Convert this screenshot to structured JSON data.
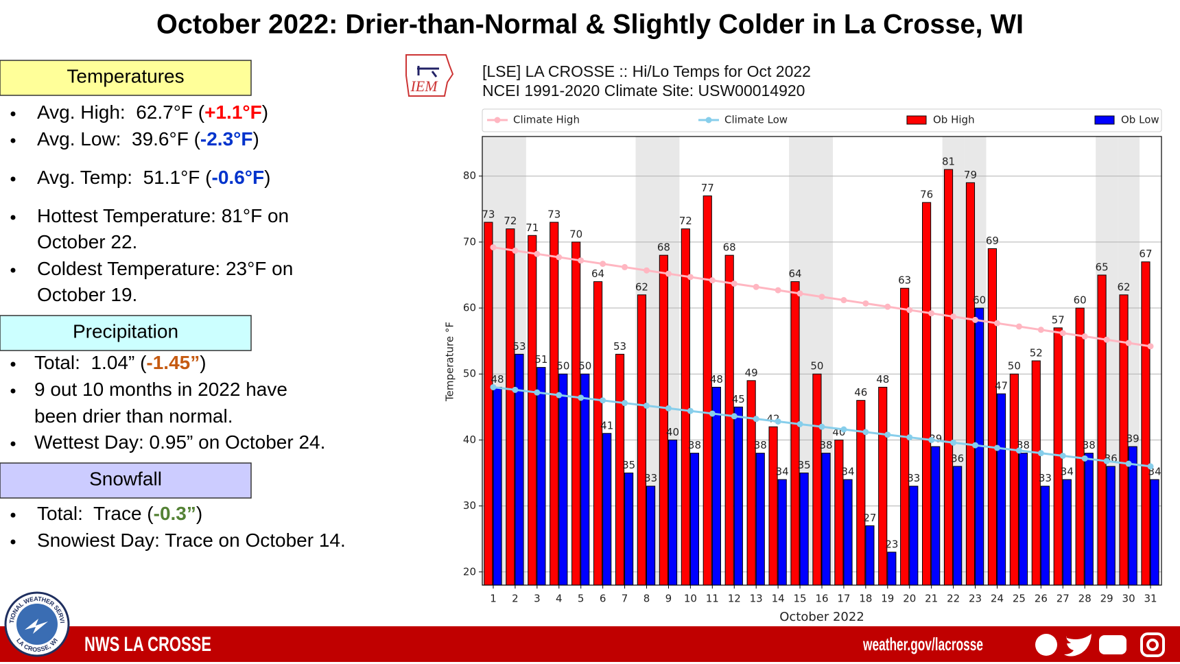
{
  "title": "October 2022: Drier-than-Normal & Slightly Colder in La Crosse, WI",
  "sections": [
    {
      "heading": "Temperatures",
      "color": "#ffff99",
      "items": [
        {
          "lines": [
            [
              {
                "text": "Avg. High:  62.7°F ("
              },
              {
                "text": "+1.1°F",
                "color": "#ff0000"
              },
              {
                "text": ")"
              }
            ]
          ]
        },
        {
          "lines": [
            [
              {
                "text": "Avg. Low:  39.6°F ("
              },
              {
                "text": "-2.3°F",
                "color": "#0033cc"
              },
              {
                "text": ")"
              }
            ]
          ]
        },
        {
          "lines": [
            [
              {
                "text": "Avg. Temp:  51.1°F ("
              },
              {
                "text": "-0.6°F",
                "color": "#0033cc"
              },
              {
                "text": ")"
              }
            ]
          ]
        },
        {
          "lines": [
            [
              {
                "text": "Hottest Temperature: 81°F on"
              }
            ],
            [
              {
                "text": "October 22."
              }
            ]
          ]
        },
        {
          "lines": [
            [
              {
                "text": "Coldest Temperature: 23°F on"
              }
            ],
            [
              {
                "text": "October 19."
              }
            ]
          ]
        }
      ]
    },
    {
      "heading": "Precipitation",
      "color": "#ccffff",
      "items": [
        {
          "lines": [
            [
              {
                "text": "Total:  1.04” ("
              },
              {
                "text": "-1.45”",
                "color": "#c55a11"
              },
              {
                "text": ")"
              }
            ]
          ]
        },
        {
          "lines": [
            [
              {
                "text": "9 out 10 months in 2022 have"
              }
            ],
            [
              {
                "text": "been drier than normal."
              }
            ]
          ]
        },
        {
          "lines": [
            [
              {
                "text": "Wettest Day: 0.95” on October 24."
              }
            ]
          ]
        }
      ]
    },
    {
      "heading": "Snowfall",
      "color": "#ccccff",
      "items": [
        {
          "lines": [
            [
              {
                "text": "Total:  Trace ("
              },
              {
                "text": "-0.3”",
                "color": "#548235"
              },
              {
                "text": ")"
              }
            ]
          ]
        },
        {
          "lines": [
            [
              {
                "text": "Snowiest Day: Trace on October 14."
              }
            ]
          ]
        }
      ]
    }
  ],
  "logo": "IEM",
  "badge": {
    "top": "NATIONAL WEATHER SERVICE",
    "bottom": "LA CROSSE, WI"
  },
  "footer": {
    "office": "NWS LA CROSSE",
    "url": "weather.gov/lacrosse"
  },
  "chart_data": {
    "type": "bar",
    "title": "[LSE] LA CROSSE :: Hi/Lo Temps for Oct 2022",
    "subtitle": "NCEI 1991-2020 Climate Site: USW00014920",
    "xlabel": "October 2022",
    "ylabel": "Temperature °F",
    "categories": [
      "1",
      "2",
      "3",
      "4",
      "5",
      "6",
      "7",
      "8",
      "9",
      "10",
      "11",
      "12",
      "13",
      "14",
      "15",
      "16",
      "17",
      "18",
      "19",
      "20",
      "21",
      "22",
      "23",
      "24",
      "25",
      "26",
      "27",
      "28",
      "29",
      "30",
      "31"
    ],
    "shaded_categories": [
      "1",
      "2",
      "8",
      "9",
      "15",
      "16",
      "22",
      "23",
      "29",
      "30"
    ],
    "series": [
      {
        "name": "Climate High",
        "type": "line",
        "color": "#ffb6c1",
        "values": [
          69.2,
          68.7,
          68.2,
          67.7,
          67.2,
          66.7,
          66.2,
          65.7,
          65.2,
          64.7,
          64.2,
          63.7,
          63.2,
          62.7,
          62.2,
          61.7,
          61.2,
          60.7,
          60.2,
          59.7,
          59.2,
          58.7,
          58.2,
          57.7,
          57.2,
          56.7,
          56.2,
          55.7,
          55.2,
          54.7,
          54.2
        ]
      },
      {
        "name": "Climate Low",
        "type": "line",
        "color": "#87ceeb",
        "values": [
          48,
          47.6,
          47.2,
          46.8,
          46.4,
          46,
          45.6,
          45.2,
          44.8,
          44.4,
          44,
          43.6,
          43.2,
          42.8,
          42.4,
          42,
          41.6,
          41.2,
          40.8,
          40.4,
          40,
          39.6,
          39.2,
          38.8,
          38.4,
          38,
          37.6,
          37.2,
          36.8,
          36.4,
          36
        ]
      },
      {
        "name": "Ob High",
        "type": "bar",
        "color": "#ff0000",
        "values": [
          73,
          72,
          71,
          73,
          70,
          64,
          53,
          62,
          68,
          72,
          77,
          68,
          49,
          42,
          64,
          50,
          40,
          46,
          48,
          63,
          76,
          81,
          79,
          69,
          50,
          52,
          57,
          60,
          65,
          62,
          67
        ]
      },
      {
        "name": "Ob Low",
        "type": "bar",
        "color": "#0000ff",
        "values": [
          48,
          53,
          51,
          50,
          50,
          41,
          35,
          33,
          40,
          38,
          48,
          45,
          38,
          34,
          35,
          38,
          34,
          27,
          23,
          33,
          39,
          36,
          60,
          47,
          38,
          33,
          34,
          38,
          36,
          39,
          34
        ]
      }
    ],
    "ylim": [
      18,
      86
    ],
    "yticks": [
      20,
      30,
      40,
      50,
      60,
      70,
      80
    ],
    "grid": true,
    "legend": "top"
  }
}
